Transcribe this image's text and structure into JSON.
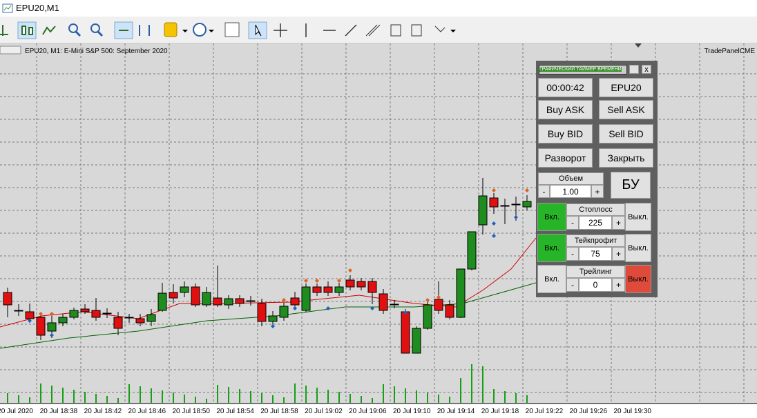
{
  "window": {
    "title": "EPU20,M1"
  },
  "chart": {
    "label": "EPU20, M1: E-Mini S&P 500: September 2020",
    "expert": "TradePanelCME",
    "time_labels": [
      "20 Jul 2020",
      "20 Jul 18:38",
      "20 Jul 18:42",
      "20 Jul 18:46",
      "20 Jul 18:50",
      "20 Jul 18:54",
      "20 Jul 18:58",
      "20 Jul 19:02",
      "20 Jul 19:06",
      "20 Jul 19:10",
      "20 Jul 19:14",
      "20 Jul 19:18",
      "20 Jul 19:22",
      "20 Jul 19:26",
      "20 Jul 19:30"
    ]
  },
  "panel": {
    "title": "ГРАФИЧЕСКИЙ ТАЙМЕР ВРЕМЕНИ",
    "close": "x",
    "timer": "00:00:42",
    "symbol": "EPU20",
    "buy_ask": "Buy ASK",
    "sell_ask": "Sell ASK",
    "buy_bid": "Buy BID",
    "sell_bid": "Sell BID",
    "reverse": "Разворот",
    "close_all": "Закрыть",
    "volume": {
      "label": "Объем",
      "minus": "-",
      "value": "1.00",
      "plus": "+"
    },
    "breakeven": "БУ",
    "rows": [
      {
        "on": "Вкл.",
        "label": "Стоплосс",
        "minus": "-",
        "value": "225",
        "plus": "+",
        "off": "Выкл."
      },
      {
        "on": "Вкл.",
        "label": "Тейкпрофит",
        "minus": "-",
        "value": "75",
        "plus": "+",
        "off": "Выкл."
      },
      {
        "on": "Вкл.",
        "label": "Трейлинг",
        "minus": "-",
        "value": "0",
        "plus": "+",
        "off": "Выкл."
      }
    ]
  }
}
